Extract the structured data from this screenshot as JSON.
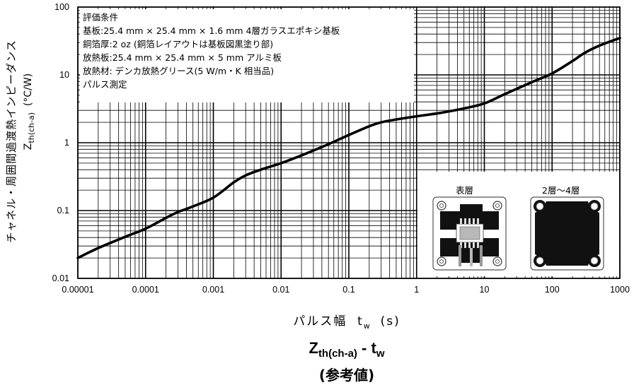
{
  "chart_data": {
    "type": "line",
    "x_scale": "log",
    "y_scale": "log",
    "xlim": [
      1e-05,
      1000
    ],
    "ylim": [
      0.01,
      100
    ],
    "x_ticks": [
      "0.00001",
      "0.0001",
      "0.001",
      "0.01",
      "0.1",
      "1",
      "10",
      "100",
      "1000"
    ],
    "y_ticks": [
      "100",
      "10",
      "1",
      "0.1",
      "0.01"
    ],
    "grid": true,
    "series": [
      {
        "x": [
          1e-05,
          2e-05,
          5e-05,
          0.0001,
          0.0002,
          0.0003,
          0.0005,
          0.001,
          0.002,
          0.003,
          0.005,
          0.01,
          0.02,
          0.05,
          0.1,
          0.2,
          0.3,
          0.5,
          1,
          2,
          3,
          5,
          10,
          20,
          50,
          100,
          200,
          300,
          500,
          1000
        ],
        "y": [
          0.02,
          0.028,
          0.041,
          0.054,
          0.078,
          0.095,
          0.115,
          0.155,
          0.26,
          0.33,
          0.4,
          0.5,
          0.65,
          0.95,
          1.3,
          1.75,
          2.0,
          2.2,
          2.45,
          2.7,
          2.9,
          3.2,
          3.8,
          5.2,
          7.8,
          10.5,
          16,
          21,
          27,
          35
        ]
      }
    ]
  },
  "y_axis_label": "チャネル・周囲間過渡熱インピーダンス",
  "y_axis_symbol": {
    "base": "Z",
    "sub": "th(ch-a)",
    "unit": "(°C/W)"
  },
  "x_axis_label": {
    "text": "パルス幅",
    "base": "t",
    "sub": "w",
    "unit": "(s)"
  },
  "bottom_title": {
    "base": "Z",
    "sub": "th(ch-a)",
    "dash": " - ",
    "base2": "t",
    "sub2": "w"
  },
  "bottom_note": "(参考値)",
  "conditions": [
    "評価条件",
    "基板:25.4 mm × 25.4 mm × 1.6 mm 4層ガラスエポキシ基板",
    "銅箔厚:2 oz (銅箔レイアウトは基板図黒塗り部)",
    "放熱板:25.4 mm × 25.4 mm × 5 mm アルミ板",
    "放熱材: デンカ放熱グリース(5 W/m・K 相当品)",
    "パルス測定"
  ],
  "inset": {
    "label_left": "表層",
    "label_right": "2層～4層"
  }
}
